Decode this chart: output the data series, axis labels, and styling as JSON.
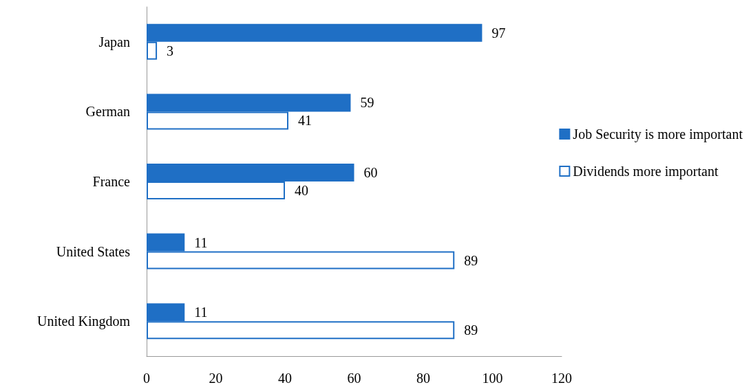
{
  "chart_data": {
    "type": "bar",
    "orientation": "horizontal",
    "categories": [
      "Japan",
      "German",
      "France",
      "United States",
      "United Kingdom"
    ],
    "series": [
      {
        "name": "Job Security is more important",
        "color": "#1f6fc5",
        "values": [
          97,
          59,
          60,
          11,
          11
        ]
      },
      {
        "name": "Dividends more important",
        "color": "#ffffff",
        "values": [
          3,
          41,
          40,
          89,
          89
        ]
      }
    ],
    "xlim": [
      0,
      120
    ],
    "xticks": [
      0,
      20,
      40,
      60,
      80,
      100,
      120
    ],
    "data_labels": true,
    "grid": false,
    "legend": "right"
  }
}
